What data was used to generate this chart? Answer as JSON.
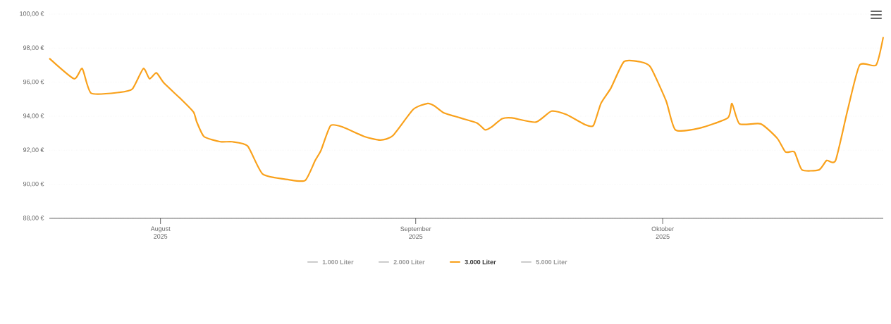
{
  "chart_data": {
    "type": "line",
    "x": [
      "2025-07-18T12:00",
      "2025-07-21T12:00",
      "2025-07-22T12:00",
      "2025-07-23T14:00",
      "2025-07-27T00:00",
      "2025-07-28T14:00",
      "2025-07-29T22:00",
      "2025-07-30T16:00",
      "2025-07-31T12:00",
      "2025-08-01T10:00",
      "2025-08-03T12:00",
      "2025-08-05T00:00",
      "2025-08-05T10:00",
      "2025-08-06T07:00",
      "2025-08-08T07:00",
      "2025-08-09T17:00",
      "2025-08-11T14:00",
      "2025-08-13T10:00",
      "2025-08-16T14:00",
      "2025-08-18T14:00",
      "2025-08-19T19:00",
      "2025-08-20T12:00",
      "2025-08-21T16:00",
      "2025-08-23T05:00",
      "2025-08-25T19:00",
      "2025-08-27T17:00",
      "2025-08-29T05:00",
      "2025-08-31T17:00",
      "2025-09-02T11:00",
      "2025-09-03T07:00",
      "2025-09-04T10:00",
      "2025-09-06T10:00",
      "2025-09-08T11:00",
      "2025-09-09T10:00",
      "2025-09-10T04:00",
      "2025-09-11T12:00",
      "2025-09-12T17:00",
      "2025-09-15T14:00",
      "2025-09-17T12:00",
      "2025-09-19T07:00",
      "2025-09-21T14:00",
      "2025-09-22T14:00",
      "2025-09-23T12:00",
      "2025-09-24T17:00",
      "2025-09-26T07:00",
      "2025-09-28T05:00",
      "2025-09-29T12:00",
      "2025-10-01T10:00",
      "2025-10-02T13:00",
      "2025-10-05T12:00",
      "2025-10-08T22:00",
      "2025-10-09T10:00",
      "2025-10-10T08:00",
      "2025-10-12T22:00",
      "2025-10-14T22:00",
      "2025-10-15T22:00",
      "2025-10-17T00:00",
      "2025-10-17T22:00",
      "2025-10-20T00:00",
      "2025-10-20T22:00",
      "2025-10-22T00:00",
      "2025-10-23T11:00",
      "2025-10-24T22:00",
      "2025-10-26T22:00",
      "2025-10-27T19:00"
    ],
    "series": [
      {
        "name": "1.000 Liter",
        "color": "#cccccc",
        "values": [
          null,
          null,
          null,
          null,
          null,
          null,
          null,
          null,
          null,
          null,
          null,
          null,
          null,
          null,
          null,
          null,
          null,
          null,
          null,
          null,
          null,
          null,
          null,
          null,
          null,
          null,
          null,
          null,
          null,
          null,
          null,
          null,
          null,
          null,
          null,
          null,
          null,
          null,
          null,
          null,
          null,
          null,
          null,
          null,
          null,
          null,
          null,
          null,
          null,
          null,
          null,
          null,
          null,
          null,
          null,
          null,
          null,
          null,
          null,
          null,
          null,
          null,
          null,
          null,
          null
        ]
      },
      {
        "name": "2.000 Liter",
        "color": "#cccccc",
        "values": [
          null,
          null,
          null,
          null,
          null,
          null,
          null,
          null,
          null,
          null,
          null,
          null,
          null,
          null,
          null,
          null,
          null,
          null,
          null,
          null,
          null,
          null,
          null,
          null,
          null,
          null,
          null,
          null,
          null,
          null,
          null,
          null,
          null,
          null,
          null,
          null,
          null,
          null,
          null,
          null,
          null,
          null,
          null,
          null,
          null,
          null,
          null,
          null,
          null,
          null,
          null,
          null,
          null,
          null,
          null,
          null,
          null,
          null,
          null,
          null,
          null,
          null,
          null,
          null,
          null
        ]
      },
      {
        "name": "3.000 Liter",
        "color": "#f9a11b",
        "values": [
          97.4,
          96.2,
          96.8,
          95.35,
          95.4,
          95.6,
          96.8,
          96.2,
          96.55,
          95.95,
          95.0,
          94.25,
          93.65,
          92.8,
          92.5,
          92.5,
          92.25,
          90.6,
          90.27,
          90.23,
          91.4,
          92.0,
          93.45,
          93.35,
          92.8,
          92.6,
          92.85,
          94.4,
          94.75,
          94.6,
          94.2,
          93.9,
          93.6,
          93.2,
          93.35,
          93.85,
          93.9,
          93.65,
          94.3,
          94.1,
          93.5,
          93.45,
          94.75,
          95.65,
          97.2,
          97.2,
          96.9,
          94.9,
          93.2,
          93.3,
          93.9,
          94.75,
          93.55,
          93.55,
          92.7,
          91.9,
          91.9,
          90.85,
          90.85,
          91.4,
          91.4,
          94.35,
          97.0,
          97.0,
          98.65
        ]
      },
      {
        "name": "5.000 Liter",
        "color": "#cccccc",
        "values": [
          null,
          null,
          null,
          null,
          null,
          null,
          null,
          null,
          null,
          null,
          null,
          null,
          null,
          null,
          null,
          null,
          null,
          null,
          null,
          null,
          null,
          null,
          null,
          null,
          null,
          null,
          null,
          null,
          null,
          null,
          null,
          null,
          null,
          null,
          null,
          null,
          null,
          null,
          null,
          null,
          null,
          null,
          null,
          null,
          null,
          null,
          null,
          null,
          null,
          null,
          null,
          null,
          null,
          null,
          null,
          null,
          null,
          null,
          null,
          null,
          null,
          null,
          null,
          null,
          null
        ]
      }
    ],
    "xlim": [
      "2025-07-18T12:00",
      "2025-10-27T19:00"
    ],
    "xticks": [
      {
        "value": "2025-08-01",
        "label": "August 2025"
      },
      {
        "value": "2025-09-01",
        "label": "September 2025"
      },
      {
        "value": "2025-10-01",
        "label": "Oktober 2025"
      }
    ],
    "ylim": [
      88,
      100
    ],
    "yticks": [
      {
        "value": 88,
        "label": "88,00 €"
      },
      {
        "value": 90,
        "label": "90,00 €"
      },
      {
        "value": 92,
        "label": "92,00 €"
      },
      {
        "value": 94,
        "label": "94,00 €"
      },
      {
        "value": 96,
        "label": "96,00 €"
      },
      {
        "value": 98,
        "label": "98,00 €"
      },
      {
        "value": 100,
        "label": "100,00 €"
      }
    ],
    "grid": "y",
    "legend": "bottom",
    "marker": "none",
    "line_style": "solid"
  }
}
